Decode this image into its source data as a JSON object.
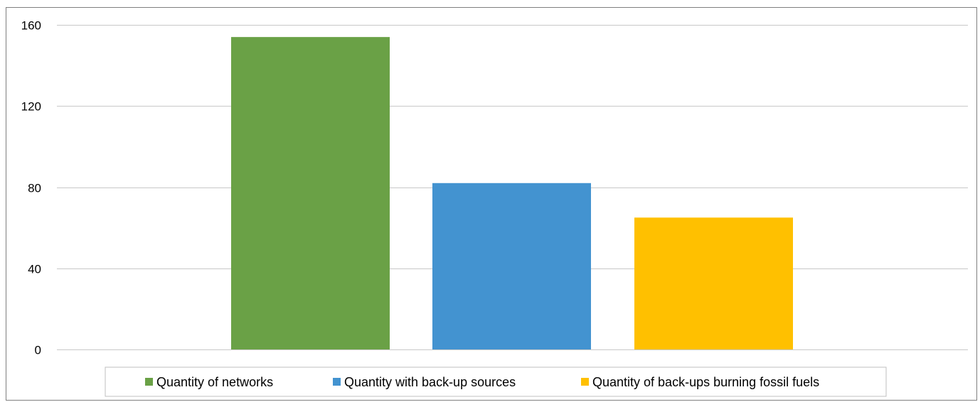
{
  "chart_data": {
    "type": "bar",
    "title": "",
    "xlabel": "",
    "ylabel": "",
    "ylim": [
      0,
      160
    ],
    "yticks": [
      0,
      40,
      80,
      120,
      160
    ],
    "grid": true,
    "legend_position": "bottom",
    "series": [
      {
        "name": "Quantity of networks",
        "value": 154,
        "color": "#6aa146"
      },
      {
        "name": "Quantity with back-up sources",
        "value": 82,
        "color": "#4393d0"
      },
      {
        "name": "Quantity of back-ups burning fossil fuels",
        "value": 65,
        "color": "#ffc000"
      }
    ]
  }
}
